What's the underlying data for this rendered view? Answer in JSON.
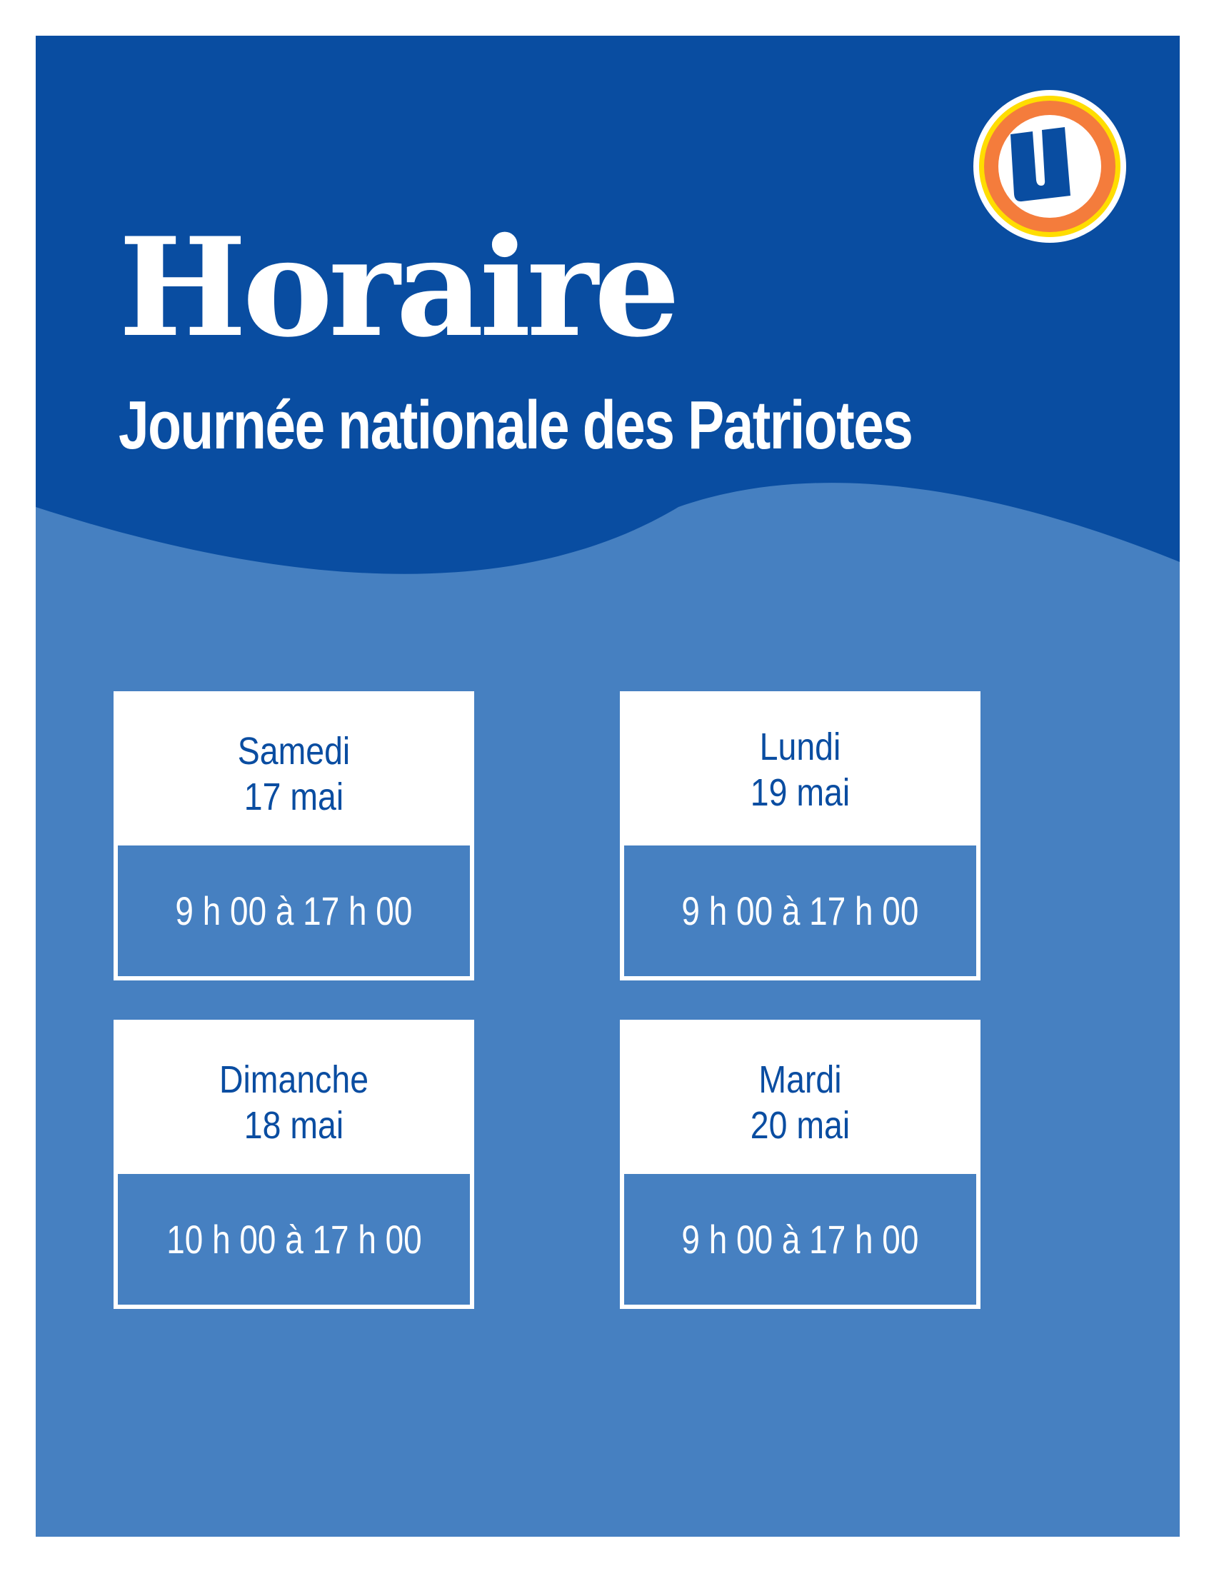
{
  "header": {
    "title": "Horaire",
    "subtitle": "Journée nationale des Patriotes",
    "logo": "U-logo"
  },
  "schedule": [
    {
      "day": "Samedi",
      "date": "17 mai",
      "hours": "9 h 00 à 17 h 00"
    },
    {
      "day": "Lundi",
      "date": "19 mai",
      "hours": "9 h 00 à 17 h 00"
    },
    {
      "day": "Dimanche",
      "date": "18 mai",
      "hours": "10 h 00 à 17 h 00"
    },
    {
      "day": "Mardi",
      "date": "20 mai",
      "hours": "9 h 00 à 17 h 00"
    }
  ],
  "colors": {
    "dark_blue": "#094da1",
    "light_blue": "#4680c1",
    "orange": "#f47c3c",
    "yellow": "#ffdd00"
  }
}
